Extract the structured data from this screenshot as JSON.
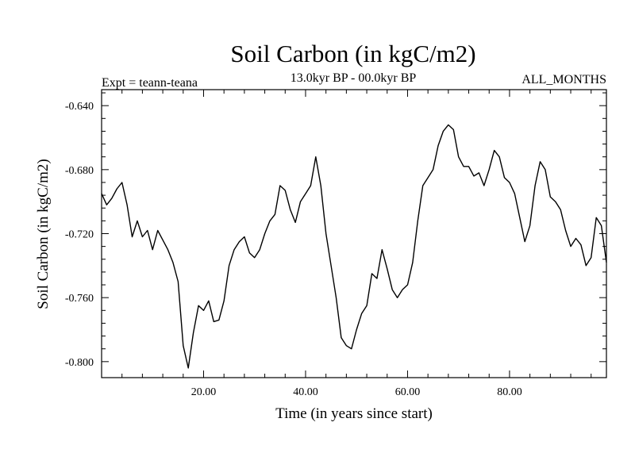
{
  "chart_data": {
    "type": "line",
    "title": "Soil Carbon (in kgC/m2)",
    "subtitle": "13.0kyr BP - 00.0kyr BP",
    "header_left": "Expt = teann-teana",
    "header_right": "ALL_MONTHS",
    "xlabel": "Time (in years since start)",
    "ylabel": "Soil Carbon (in kgC/m2)",
    "xlim": [
      0,
      99
    ],
    "ylim": [
      -0.81,
      -0.63
    ],
    "x_ticks": [
      20,
      40,
      60,
      80
    ],
    "x_tick_labels": [
      "20.00",
      "40.00",
      "60.00",
      "80.00"
    ],
    "y_ticks": [
      -0.8,
      -0.76,
      -0.72,
      -0.68,
      -0.64
    ],
    "y_tick_labels": [
      "-0.800",
      "-0.760",
      "-0.720",
      "-0.680",
      "-0.640"
    ],
    "grid": false,
    "series": [
      {
        "color": "#000000",
        "x": [
          0,
          1,
          2,
          3,
          4,
          5,
          6,
          7,
          8,
          9,
          10,
          11,
          12,
          13,
          14,
          15,
          16,
          17,
          18,
          19,
          20,
          21,
          22,
          23,
          24,
          25,
          26,
          27,
          28,
          29,
          30,
          31,
          32,
          33,
          34,
          35,
          36,
          37,
          38,
          39,
          40,
          41,
          42,
          43,
          44,
          45,
          46,
          47,
          48,
          49,
          50,
          51,
          52,
          53,
          54,
          55,
          56,
          57,
          58,
          59,
          60,
          61,
          62,
          63,
          64,
          65,
          66,
          67,
          68,
          69,
          70,
          71,
          72,
          73,
          74,
          75,
          76,
          77,
          78,
          79,
          80,
          81,
          82,
          83,
          84,
          85,
          86,
          87,
          88,
          89,
          90,
          91,
          92,
          93,
          94,
          95,
          96,
          97,
          98,
          99
        ],
        "y": [
          -0.695,
          -0.702,
          -0.698,
          -0.692,
          -0.688,
          -0.702,
          -0.722,
          -0.712,
          -0.722,
          -0.718,
          -0.73,
          -0.718,
          -0.724,
          -0.73,
          -0.738,
          -0.75,
          -0.79,
          -0.804,
          -0.782,
          -0.765,
          -0.768,
          -0.762,
          -0.775,
          -0.774,
          -0.762,
          -0.74,
          -0.73,
          -0.725,
          -0.722,
          -0.732,
          -0.735,
          -0.73,
          -0.72,
          -0.712,
          -0.708,
          -0.69,
          -0.693,
          -0.705,
          -0.713,
          -0.7,
          -0.695,
          -0.69,
          -0.672,
          -0.69,
          -0.72,
          -0.74,
          -0.76,
          -0.785,
          -0.79,
          -0.792,
          -0.78,
          -0.77,
          -0.765,
          -0.745,
          -0.748,
          -0.73,
          -0.742,
          -0.755,
          -0.76,
          -0.755,
          -0.752,
          -0.738,
          -0.712,
          -0.69,
          -0.685,
          -0.68,
          -0.665,
          -0.656,
          -0.652,
          -0.655,
          -0.672,
          -0.678,
          -0.678,
          -0.684,
          -0.682,
          -0.69,
          -0.68,
          -0.668,
          -0.672,
          -0.685,
          -0.688,
          -0.695,
          -0.71,
          -0.725,
          -0.715,
          -0.69,
          -0.675,
          -0.68,
          -0.697,
          -0.7,
          -0.705,
          -0.718,
          -0.728,
          -0.723,
          -0.727,
          -0.74,
          -0.735,
          -0.71,
          -0.715,
          -0.738
        ]
      }
    ]
  }
}
